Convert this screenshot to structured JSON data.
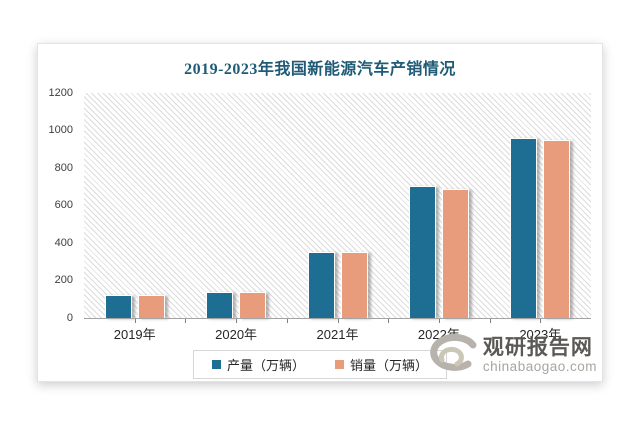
{
  "title": "2019-2023年我国新能源汽车产销情况",
  "chart_data": {
    "type": "bar",
    "title": "2019-2023年我国新能源汽车产销情况",
    "categories": [
      "2019年",
      "2020年",
      "2021年",
      "2022年",
      "2023年"
    ],
    "series": [
      {
        "name": "产量（万辆）",
        "color": "#1e6d92",
        "values": [
          124.2,
          136.6,
          354.5,
          705.8,
          958.7
        ]
      },
      {
        "name": "销量（万辆）",
        "color": "#e89c7b",
        "values": [
          120.6,
          136.7,
          352.1,
          688.7,
          949.5
        ]
      }
    ],
    "ylim": [
      0,
      1200
    ],
    "yticks": [
      0,
      200,
      400,
      600,
      800,
      1000,
      1200
    ],
    "xlabel": "",
    "ylabel": "",
    "grid": false,
    "legend_position": "bottom",
    "plot_background": "diagonal-hatch"
  },
  "colors": {
    "title": "#1f5b76",
    "production_bar": "#1e6d92",
    "sales_bar": "#e89c7b",
    "axis_line": "#a3a3a3",
    "hatch_line": "#dcdcdc"
  },
  "watermark": {
    "logo": "swirl-logo",
    "brand": "观研报告网",
    "domain": "chinabaogao.com"
  }
}
